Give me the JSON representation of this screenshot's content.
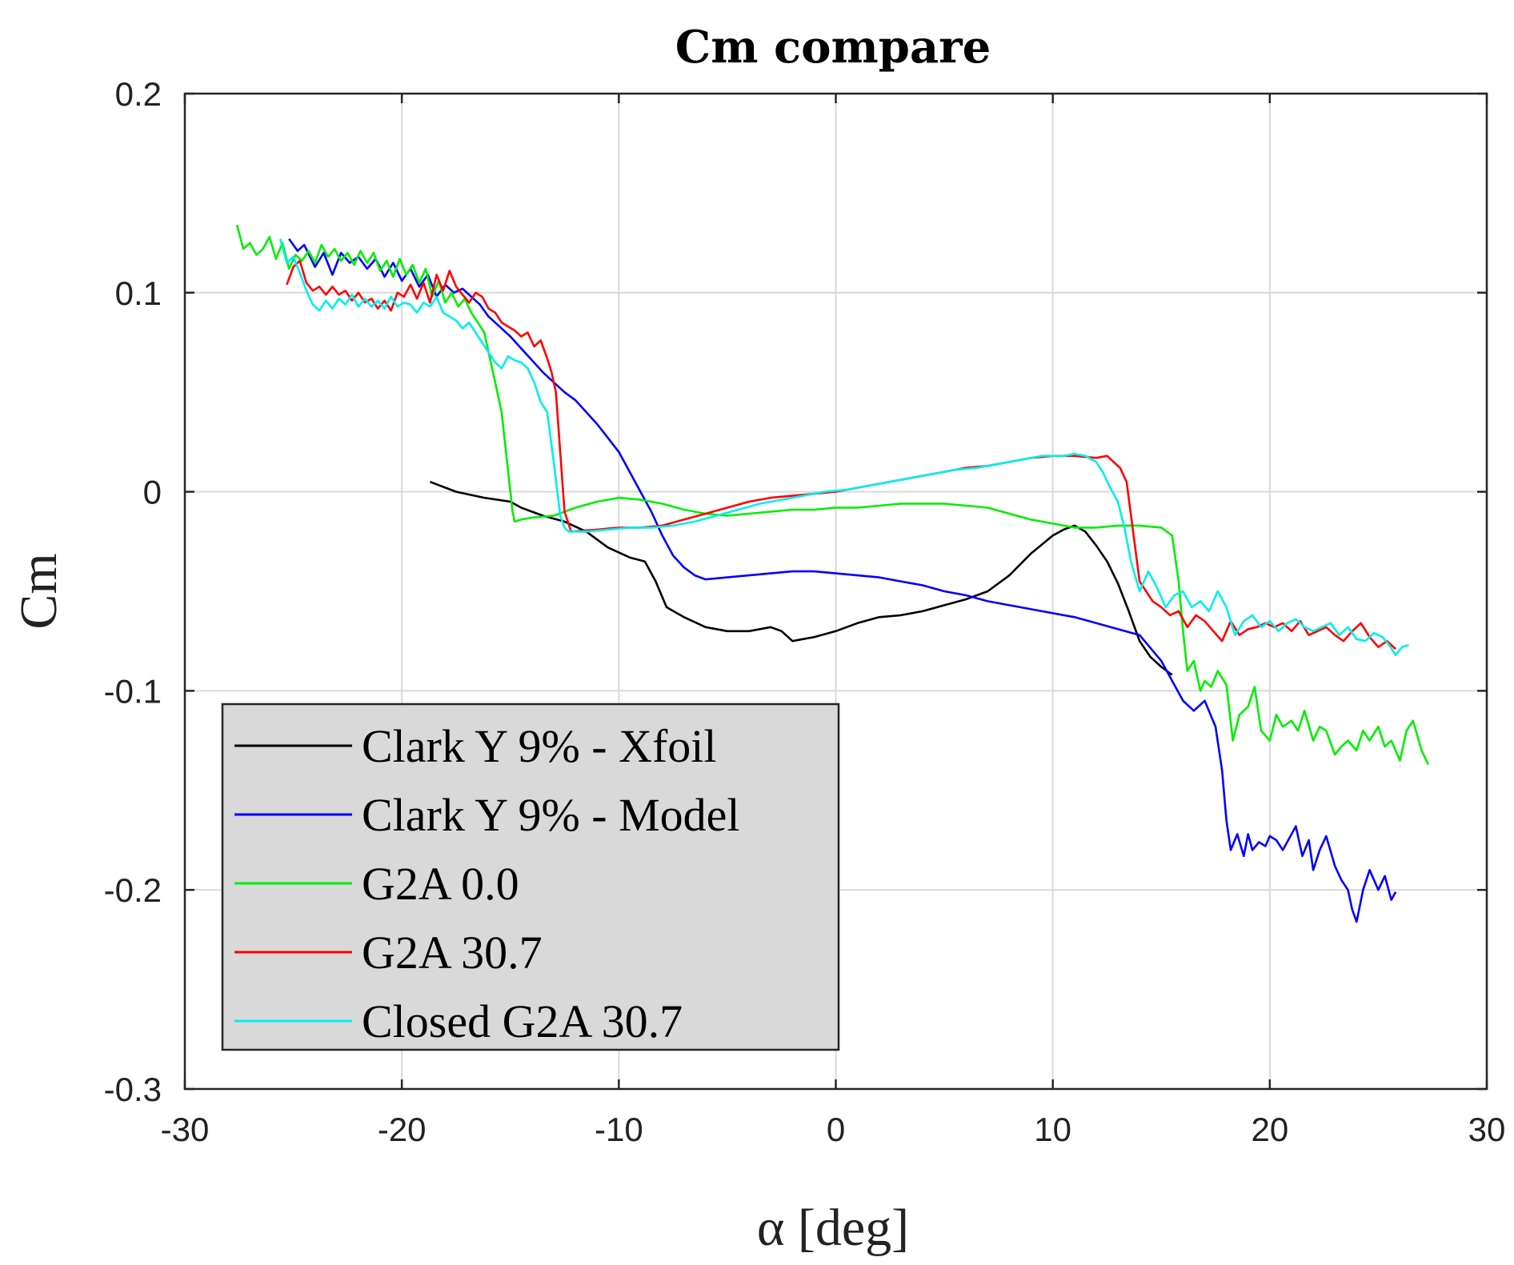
{
  "chart_data": {
    "type": "line",
    "title": "Cm compare",
    "xlabel": "α [deg]",
    "ylabel": "Cm",
    "xlim": [
      -30,
      30
    ],
    "ylim": [
      -0.3,
      0.2
    ],
    "xticks": [
      -30,
      -20,
      -10,
      0,
      10,
      20,
      30
    ],
    "yticks": [
      -0.3,
      -0.2,
      -0.1,
      0,
      0.1,
      0.2
    ],
    "grid": true,
    "legend_position": "bottom-left",
    "series": [
      {
        "name": "Clark Y 9% - Xfoil",
        "color": "#000000",
        "x": [
          -18.7,
          -17.5,
          -16.2,
          -15.0,
          -14.5,
          -13.5,
          -12.5,
          -11.5,
          -10.5,
          -9.5,
          -8.8,
          -8.3,
          -7.8,
          -7.0,
          -6.0,
          -5.0,
          -4.0,
          -3.0,
          -2.5,
          -2.0,
          -1.5,
          -1.0,
          0.0,
          1.0,
          2.0,
          3.0,
          4.0,
          5.0,
          6.0,
          7.0,
          8.0,
          9.0,
          10.0,
          10.5,
          11.0,
          11.5,
          12.0,
          12.5,
          13.0,
          13.5,
          14.0,
          14.5,
          15.0,
          15.5
        ],
        "y": [
          0.005,
          0.0,
          -0.003,
          -0.005,
          -0.008,
          -0.012,
          -0.015,
          -0.02,
          -0.028,
          -0.033,
          -0.035,
          -0.045,
          -0.058,
          -0.063,
          -0.068,
          -0.07,
          -0.07,
          -0.068,
          -0.07,
          -0.075,
          -0.074,
          -0.073,
          -0.07,
          -0.066,
          -0.063,
          -0.062,
          -0.06,
          -0.057,
          -0.054,
          -0.05,
          -0.042,
          -0.031,
          -0.022,
          -0.019,
          -0.017,
          -0.02,
          -0.027,
          -0.035,
          -0.046,
          -0.06,
          -0.075,
          -0.083,
          -0.088,
          -0.092
        ]
      },
      {
        "name": "Clark Y 9% - Model",
        "color": "#0000ff",
        "x": [
          -25.2,
          -24.8,
          -24.5,
          -24.0,
          -23.6,
          -23.2,
          -22.8,
          -22.4,
          -22.0,
          -21.6,
          -21.2,
          -20.8,
          -20.4,
          -20.0,
          -19.6,
          -19.2,
          -18.8,
          -18.4,
          -18.0,
          -17.6,
          -17.2,
          -16.8,
          -16.4,
          -16.0,
          -15.5,
          -15.0,
          -14.5,
          -14.0,
          -13.5,
          -13.0,
          -12.5,
          -12.0,
          -11.5,
          -11.0,
          -10.5,
          -10.0,
          -9.5,
          -9.0,
          -8.5,
          -8.0,
          -7.5,
          -7.0,
          -6.5,
          -6.0,
          -5.0,
          -4.0,
          -3.0,
          -2.0,
          -1.0,
          0.0,
          1.0,
          2.0,
          3.0,
          4.0,
          5.0,
          6.0,
          7.0,
          8.0,
          9.0,
          10.0,
          11.0,
          12.0,
          13.0,
          14.0,
          15.0,
          15.5,
          16.0,
          16.5,
          17.0,
          17.5,
          17.8,
          18.0,
          18.2,
          18.5,
          18.8,
          19.0,
          19.2,
          19.5,
          19.8,
          20.0,
          20.3,
          20.6,
          21.0,
          21.2,
          21.5,
          21.8,
          22.0,
          22.3,
          22.6,
          23.0,
          23.3,
          23.6,
          23.8,
          24.0,
          24.3,
          24.6,
          25.0,
          25.3,
          25.6,
          25.8
        ],
        "y": [
          0.127,
          0.121,
          0.124,
          0.113,
          0.12,
          0.109,
          0.12,
          0.115,
          0.118,
          0.112,
          0.117,
          0.108,
          0.115,
          0.106,
          0.112,
          0.103,
          0.109,
          0.098,
          0.104,
          0.1,
          0.102,
          0.098,
          0.094,
          0.088,
          0.083,
          0.078,
          0.072,
          0.066,
          0.06,
          0.055,
          0.05,
          0.046,
          0.04,
          0.034,
          0.027,
          0.02,
          0.01,
          0.0,
          -0.01,
          -0.022,
          -0.032,
          -0.038,
          -0.042,
          -0.044,
          -0.043,
          -0.042,
          -0.041,
          -0.04,
          -0.04,
          -0.041,
          -0.042,
          -0.043,
          -0.045,
          -0.047,
          -0.05,
          -0.052,
          -0.055,
          -0.057,
          -0.059,
          -0.061,
          -0.063,
          -0.066,
          -0.069,
          -0.072,
          -0.085,
          -0.095,
          -0.105,
          -0.11,
          -0.105,
          -0.118,
          -0.14,
          -0.165,
          -0.18,
          -0.172,
          -0.183,
          -0.172,
          -0.18,
          -0.176,
          -0.178,
          -0.173,
          -0.175,
          -0.18,
          -0.172,
          -0.168,
          -0.183,
          -0.175,
          -0.19,
          -0.18,
          -0.173,
          -0.188,
          -0.195,
          -0.2,
          -0.21,
          -0.216,
          -0.2,
          -0.19,
          -0.2,
          -0.193,
          -0.205,
          -0.201
        ]
      },
      {
        "name": "G2A 0.0",
        "color": "#00ee00",
        "x": [
          -27.6,
          -27.3,
          -27.0,
          -26.7,
          -26.4,
          -26.1,
          -25.8,
          -25.5,
          -25.2,
          -24.9,
          -24.6,
          -24.3,
          -24.0,
          -23.7,
          -23.4,
          -23.1,
          -22.8,
          -22.5,
          -22.2,
          -21.9,
          -21.6,
          -21.3,
          -21.0,
          -20.7,
          -20.4,
          -20.1,
          -19.8,
          -19.5,
          -19.2,
          -18.9,
          -18.6,
          -18.3,
          -18.0,
          -17.7,
          -17.4,
          -17.1,
          -16.8,
          -16.5,
          -16.2,
          -16.0,
          -15.8,
          -15.6,
          -15.4,
          -15.2,
          -15.0,
          -14.9,
          -14.8,
          -14.5,
          -14.0,
          -13.0,
          -12.0,
          -11.0,
          -10.0,
          -9.0,
          -8.0,
          -7.0,
          -6.0,
          -5.0,
          -4.0,
          -3.0,
          -2.0,
          -1.0,
          0.0,
          1.0,
          2.0,
          3.0,
          4.0,
          5.0,
          6.0,
          7.0,
          8.0,
          9.0,
          10.0,
          11.0,
          12.0,
          13.0,
          14.0,
          15.0,
          15.5,
          15.8,
          16.0,
          16.2,
          16.5,
          16.8,
          17.0,
          17.3,
          17.6,
          18.0,
          18.3,
          18.6,
          19.0,
          19.3,
          19.6,
          20.0,
          20.3,
          20.6,
          21.0,
          21.3,
          21.6,
          22.0,
          22.3,
          22.6,
          23.0,
          23.3,
          23.6,
          24.0,
          24.3,
          24.6,
          25.0,
          25.3,
          25.6,
          26.0,
          26.3,
          26.6,
          27.0,
          27.3
        ],
        "y": [
          0.134,
          0.122,
          0.125,
          0.119,
          0.122,
          0.128,
          0.117,
          0.125,
          0.112,
          0.119,
          0.116,
          0.121,
          0.115,
          0.124,
          0.118,
          0.122,
          0.116,
          0.12,
          0.114,
          0.121,
          0.115,
          0.12,
          0.111,
          0.116,
          0.108,
          0.117,
          0.109,
          0.114,
          0.105,
          0.112,
          0.098,
          0.106,
          0.095,
          0.1,
          0.093,
          0.097,
          0.09,
          0.085,
          0.08,
          0.07,
          0.06,
          0.05,
          0.04,
          0.02,
          0.0,
          -0.01,
          -0.015,
          -0.014,
          -0.013,
          -0.012,
          -0.008,
          -0.005,
          -0.003,
          -0.004,
          -0.006,
          -0.009,
          -0.011,
          -0.012,
          -0.011,
          -0.01,
          -0.009,
          -0.009,
          -0.008,
          -0.008,
          -0.007,
          -0.006,
          -0.006,
          -0.006,
          -0.007,
          -0.008,
          -0.011,
          -0.014,
          -0.016,
          -0.018,
          -0.018,
          -0.017,
          -0.017,
          -0.018,
          -0.022,
          -0.045,
          -0.07,
          -0.09,
          -0.085,
          -0.1,
          -0.095,
          -0.098,
          -0.09,
          -0.097,
          -0.125,
          -0.112,
          -0.108,
          -0.098,
          -0.12,
          -0.125,
          -0.112,
          -0.118,
          -0.115,
          -0.12,
          -0.11,
          -0.125,
          -0.118,
          -0.12,
          -0.132,
          -0.128,
          -0.125,
          -0.13,
          -0.12,
          -0.125,
          -0.118,
          -0.128,
          -0.125,
          -0.135,
          -0.12,
          -0.115,
          -0.13,
          -0.137
        ]
      },
      {
        "name": "G2A 30.7",
        "color": "#ff0000",
        "x": [
          -25.3,
          -25.0,
          -24.7,
          -24.4,
          -24.1,
          -23.8,
          -23.5,
          -23.2,
          -22.9,
          -22.6,
          -22.3,
          -22.0,
          -21.7,
          -21.4,
          -21.1,
          -20.8,
          -20.5,
          -20.2,
          -19.9,
          -19.6,
          -19.3,
          -19.0,
          -18.7,
          -18.4,
          -18.1,
          -17.8,
          -17.5,
          -17.2,
          -16.9,
          -16.6,
          -16.3,
          -16.0,
          -15.7,
          -15.4,
          -15.1,
          -14.8,
          -14.5,
          -14.2,
          -13.9,
          -13.6,
          -13.3,
          -13.1,
          -12.9,
          -12.7,
          -12.5,
          -12.2,
          -11.0,
          -10.0,
          -9.0,
          -8.0,
          -7.0,
          -6.0,
          -5.0,
          -4.0,
          -3.0,
          -2.0,
          -1.0,
          0.0,
          1.0,
          2.0,
          3.0,
          4.0,
          5.0,
          6.0,
          7.0,
          8.0,
          9.0,
          10.0,
          11.0,
          12.0,
          12.5,
          12.8,
          13.1,
          13.4,
          13.7,
          14.0,
          14.3,
          14.6,
          15.0,
          15.4,
          15.8,
          16.2,
          16.6,
          17.0,
          17.4,
          17.8,
          18.2,
          18.6,
          19.0,
          19.4,
          19.8,
          20.2,
          20.6,
          21.0,
          21.4,
          21.8,
          22.2,
          22.6,
          23.0,
          23.4,
          23.8,
          24.2,
          24.6,
          25.0,
          25.4,
          25.8
        ],
        "y": [
          0.104,
          0.113,
          0.116,
          0.105,
          0.101,
          0.103,
          0.099,
          0.103,
          0.099,
          0.101,
          0.096,
          0.1,
          0.095,
          0.097,
          0.092,
          0.096,
          0.091,
          0.1,
          0.098,
          0.104,
          0.097,
          0.105,
          0.095,
          0.109,
          0.101,
          0.111,
          0.103,
          0.099,
          0.095,
          0.1,
          0.098,
          0.092,
          0.09,
          0.085,
          0.083,
          0.081,
          0.078,
          0.08,
          0.073,
          0.076,
          0.067,
          0.06,
          0.05,
          0.02,
          -0.01,
          -0.02,
          -0.019,
          -0.018,
          -0.018,
          -0.017,
          -0.014,
          -0.011,
          -0.008,
          -0.005,
          -0.003,
          -0.002,
          -0.001,
          0.0,
          0.002,
          0.004,
          0.006,
          0.008,
          0.01,
          0.012,
          0.013,
          0.015,
          0.017,
          0.018,
          0.018,
          0.017,
          0.018,
          0.015,
          0.012,
          0.005,
          -0.02,
          -0.045,
          -0.05,
          -0.055,
          -0.058,
          -0.062,
          -0.06,
          -0.068,
          -0.062,
          -0.065,
          -0.07,
          -0.075,
          -0.065,
          -0.072,
          -0.069,
          -0.068,
          -0.066,
          -0.068,
          -0.066,
          -0.07,
          -0.065,
          -0.072,
          -0.07,
          -0.068,
          -0.072,
          -0.075,
          -0.07,
          -0.066,
          -0.073,
          -0.078,
          -0.075,
          -0.079
        ]
      },
      {
        "name": "Closed G2A 30.7",
        "color": "#00eeee",
        "x": [
          -25.6,
          -25.3,
          -25.0,
          -24.7,
          -24.4,
          -24.1,
          -23.8,
          -23.5,
          -23.2,
          -22.9,
          -22.6,
          -22.3,
          -22.0,
          -21.7,
          -21.4,
          -21.1,
          -20.8,
          -20.5,
          -20.2,
          -19.9,
          -19.6,
          -19.3,
          -19.0,
          -18.7,
          -18.4,
          -18.1,
          -17.8,
          -17.5,
          -17.2,
          -16.9,
          -16.6,
          -16.3,
          -16.0,
          -15.7,
          -15.4,
          -15.1,
          -14.8,
          -14.5,
          -14.2,
          -13.9,
          -13.6,
          -13.3,
          -13.0,
          -12.7,
          -12.5,
          -12.3,
          -11.5,
          -10.5,
          -9.5,
          -8.5,
          -7.5,
          -6.5,
          -5.5,
          -4.5,
          -3.5,
          -2.5,
          -1.5,
          -0.5,
          0.5,
          1.5,
          2.5,
          3.5,
          4.5,
          5.5,
          6.5,
          7.5,
          8.5,
          9.5,
          10.5,
          11.0,
          11.5,
          12.0,
          12.3,
          12.6,
          13.0,
          13.3,
          13.6,
          14.0,
          14.4,
          14.8,
          15.2,
          15.6,
          16.0,
          16.4,
          16.8,
          17.2,
          17.6,
          18.0,
          18.4,
          18.8,
          19.2,
          19.6,
          20.0,
          20.4,
          20.8,
          21.2,
          21.6,
          22.0,
          22.4,
          22.8,
          23.2,
          23.6,
          24.0,
          24.4,
          24.8,
          25.2,
          25.5,
          25.8,
          26.1,
          26.4
        ],
        "y": [
          0.127,
          0.115,
          0.118,
          0.11,
          0.101,
          0.094,
          0.091,
          0.096,
          0.092,
          0.097,
          0.094,
          0.099,
          0.093,
          0.097,
          0.093,
          0.096,
          0.092,
          0.098,
          0.093,
          0.095,
          0.094,
          0.09,
          0.095,
          0.093,
          0.098,
          0.09,
          0.088,
          0.086,
          0.082,
          0.085,
          0.08,
          0.075,
          0.07,
          0.065,
          0.062,
          0.068,
          0.066,
          0.065,
          0.062,
          0.055,
          0.045,
          0.04,
          0.015,
          -0.012,
          -0.018,
          -0.02,
          -0.02,
          -0.019,
          -0.018,
          -0.018,
          -0.017,
          -0.015,
          -0.012,
          -0.009,
          -0.006,
          -0.004,
          -0.002,
          0.0,
          0.001,
          0.003,
          0.005,
          0.007,
          0.009,
          0.011,
          0.012,
          0.014,
          0.016,
          0.018,
          0.018,
          0.019,
          0.018,
          0.015,
          0.01,
          0.003,
          -0.005,
          -0.018,
          -0.035,
          -0.05,
          -0.04,
          -0.048,
          -0.058,
          -0.052,
          -0.05,
          -0.058,
          -0.055,
          -0.06,
          -0.05,
          -0.058,
          -0.072,
          -0.065,
          -0.062,
          -0.068,
          -0.065,
          -0.07,
          -0.066,
          -0.064,
          -0.068,
          -0.07,
          -0.068,
          -0.066,
          -0.072,
          -0.068,
          -0.074,
          -0.075,
          -0.071,
          -0.073,
          -0.077,
          -0.082,
          -0.078,
          -0.077
        ]
      }
    ]
  }
}
